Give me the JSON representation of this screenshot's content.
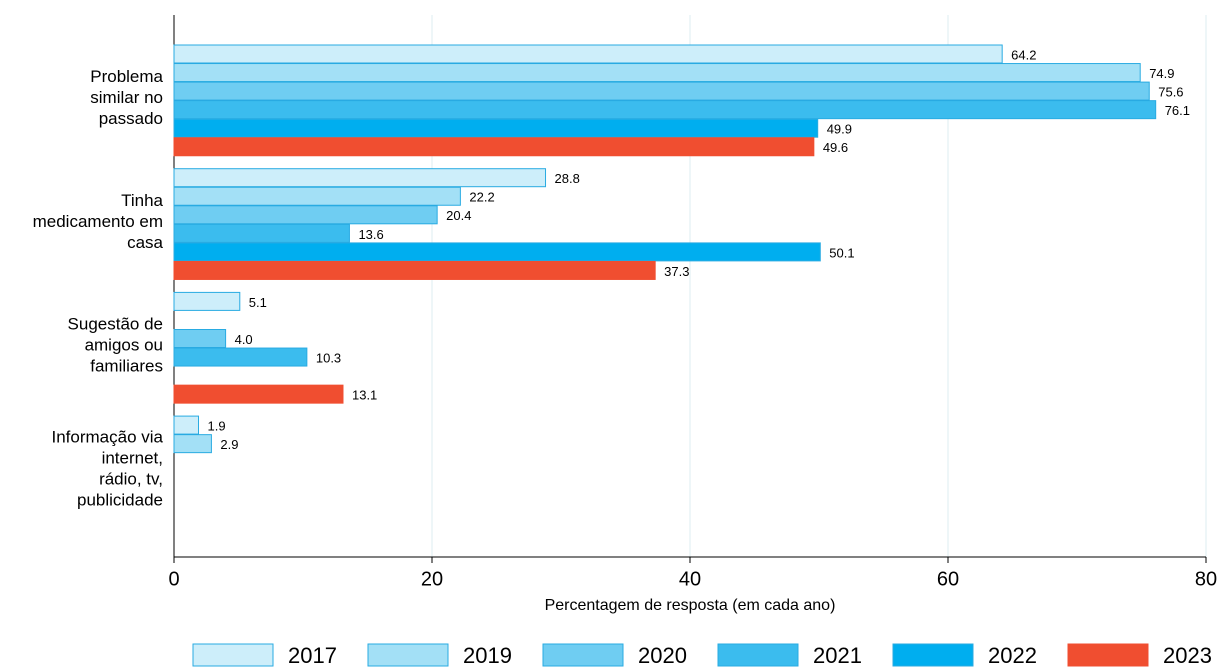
{
  "chart_data": {
    "type": "bar",
    "orientation": "horizontal",
    "xlabel": "Percentagem de resposta (em cada ano)",
    "categories": [
      [
        "Problema",
        "similar no",
        "passado"
      ],
      [
        "Tinha",
        "medicamento em",
        "casa"
      ],
      [
        "Sugestão de",
        "amigos ou",
        "familiares"
      ],
      [
        "Informação via",
        "internet,",
        "rádio, tv,",
        "publicidade"
      ]
    ],
    "series": [
      {
        "name": "2017",
        "color": "#cdeefa",
        "values": [
          64.2,
          28.8,
          5.1,
          1.9
        ],
        "value_labels": [
          "64.2",
          "28.8",
          "5.1",
          "1.9"
        ]
      },
      {
        "name": "2019",
        "color": "#a3e0f6",
        "values": [
          74.9,
          22.2,
          null,
          2.9
        ],
        "value_labels": [
          "74.9",
          "22.2",
          null,
          "2.9"
        ]
      },
      {
        "name": "2020",
        "color": "#6fcdf2",
        "values": [
          75.6,
          20.4,
          4.0,
          null
        ],
        "value_labels": [
          "75.6",
          "20.4",
          "4.0",
          null
        ]
      },
      {
        "name": "2021",
        "color": "#3bbcee",
        "values": [
          76.1,
          13.6,
          10.3,
          null
        ],
        "value_labels": [
          "76.1",
          "13.6",
          "10.3",
          null
        ]
      },
      {
        "name": "2022",
        "color": "#00aeef",
        "values": [
          49.9,
          50.1,
          null,
          null
        ],
        "value_labels": [
          "49.9",
          "50.1",
          null,
          null
        ]
      },
      {
        "name": "2023",
        "color": "#f04e30",
        "values": [
          49.6,
          37.3,
          13.1,
          null
        ],
        "value_labels": [
          "49.6",
          "37.3",
          "13.1",
          null
        ]
      }
    ],
    "xlim": [
      0,
      80
    ],
    "xticks": [
      0,
      20,
      40,
      60,
      80
    ],
    "grid": true,
    "legend": "bottom"
  }
}
